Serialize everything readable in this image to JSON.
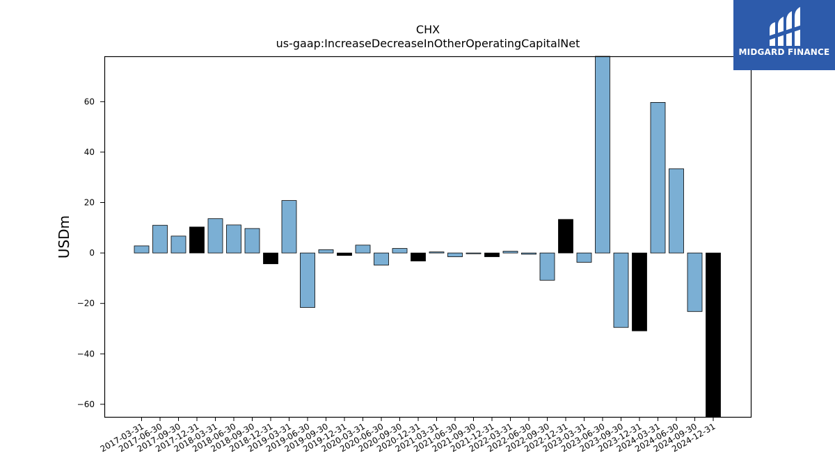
{
  "colors": {
    "positive_bar": "#7bafd4",
    "highlight_bar": "#000000",
    "logo_bg": "#2d5bab"
  },
  "logo": {
    "icon": "midgard-mark-icon",
    "text": "MIDGARD FINANCE"
  },
  "chart_data": {
    "type": "bar",
    "title": "CHX",
    "subtitle": "us-gaap:IncreaseDecreaseInOtherOperatingCapitalNet",
    "ylabel": "USDm",
    "xlabel": "",
    "ylim": [
      -65,
      78
    ],
    "yticks": [
      -60,
      -40,
      -20,
      0,
      20,
      40,
      60
    ],
    "grid": false,
    "categories": [
      "2017-03-31",
      "2017-06-30",
      "2017-09-30",
      "2017-12-31",
      "2018-03-31",
      "2018-06-30",
      "2018-09-30",
      "2018-12-31",
      "2019-03-31",
      "2019-06-30",
      "2019-09-30",
      "2019-12-31",
      "2020-03-31",
      "2020-06-30",
      "2020-09-30",
      "2020-12-31",
      "2021-03-31",
      "2021-06-30",
      "2021-09-30",
      "2021-12-31",
      "2022-03-31",
      "2022-06-30",
      "2022-09-30",
      "2022-12-31",
      "2023-03-31",
      "2023-06-30",
      "2023-09-30",
      "2023-12-31",
      "2024-03-31",
      "2024-06-30",
      "2024-09-30",
      "2024-12-31"
    ],
    "values": [
      2.8,
      11.0,
      6.7,
      10.3,
      13.6,
      11.1,
      9.7,
      -4.3,
      20.8,
      -21.6,
      1.3,
      -1.0,
      3.1,
      -4.8,
      1.8,
      -3.2,
      0.4,
      -1.5,
      -0.3,
      -1.5,
      0.7,
      -0.5,
      -10.8,
      13.3,
      -3.7,
      78.0,
      -29.5,
      -30.9,
      59.7,
      33.4,
      -23.2,
      -65.0
    ],
    "highlight": [
      false,
      false,
      false,
      true,
      false,
      false,
      false,
      true,
      false,
      false,
      false,
      true,
      false,
      false,
      false,
      true,
      false,
      false,
      false,
      true,
      false,
      false,
      false,
      true,
      false,
      false,
      false,
      true,
      false,
      false,
      false,
      true
    ]
  }
}
